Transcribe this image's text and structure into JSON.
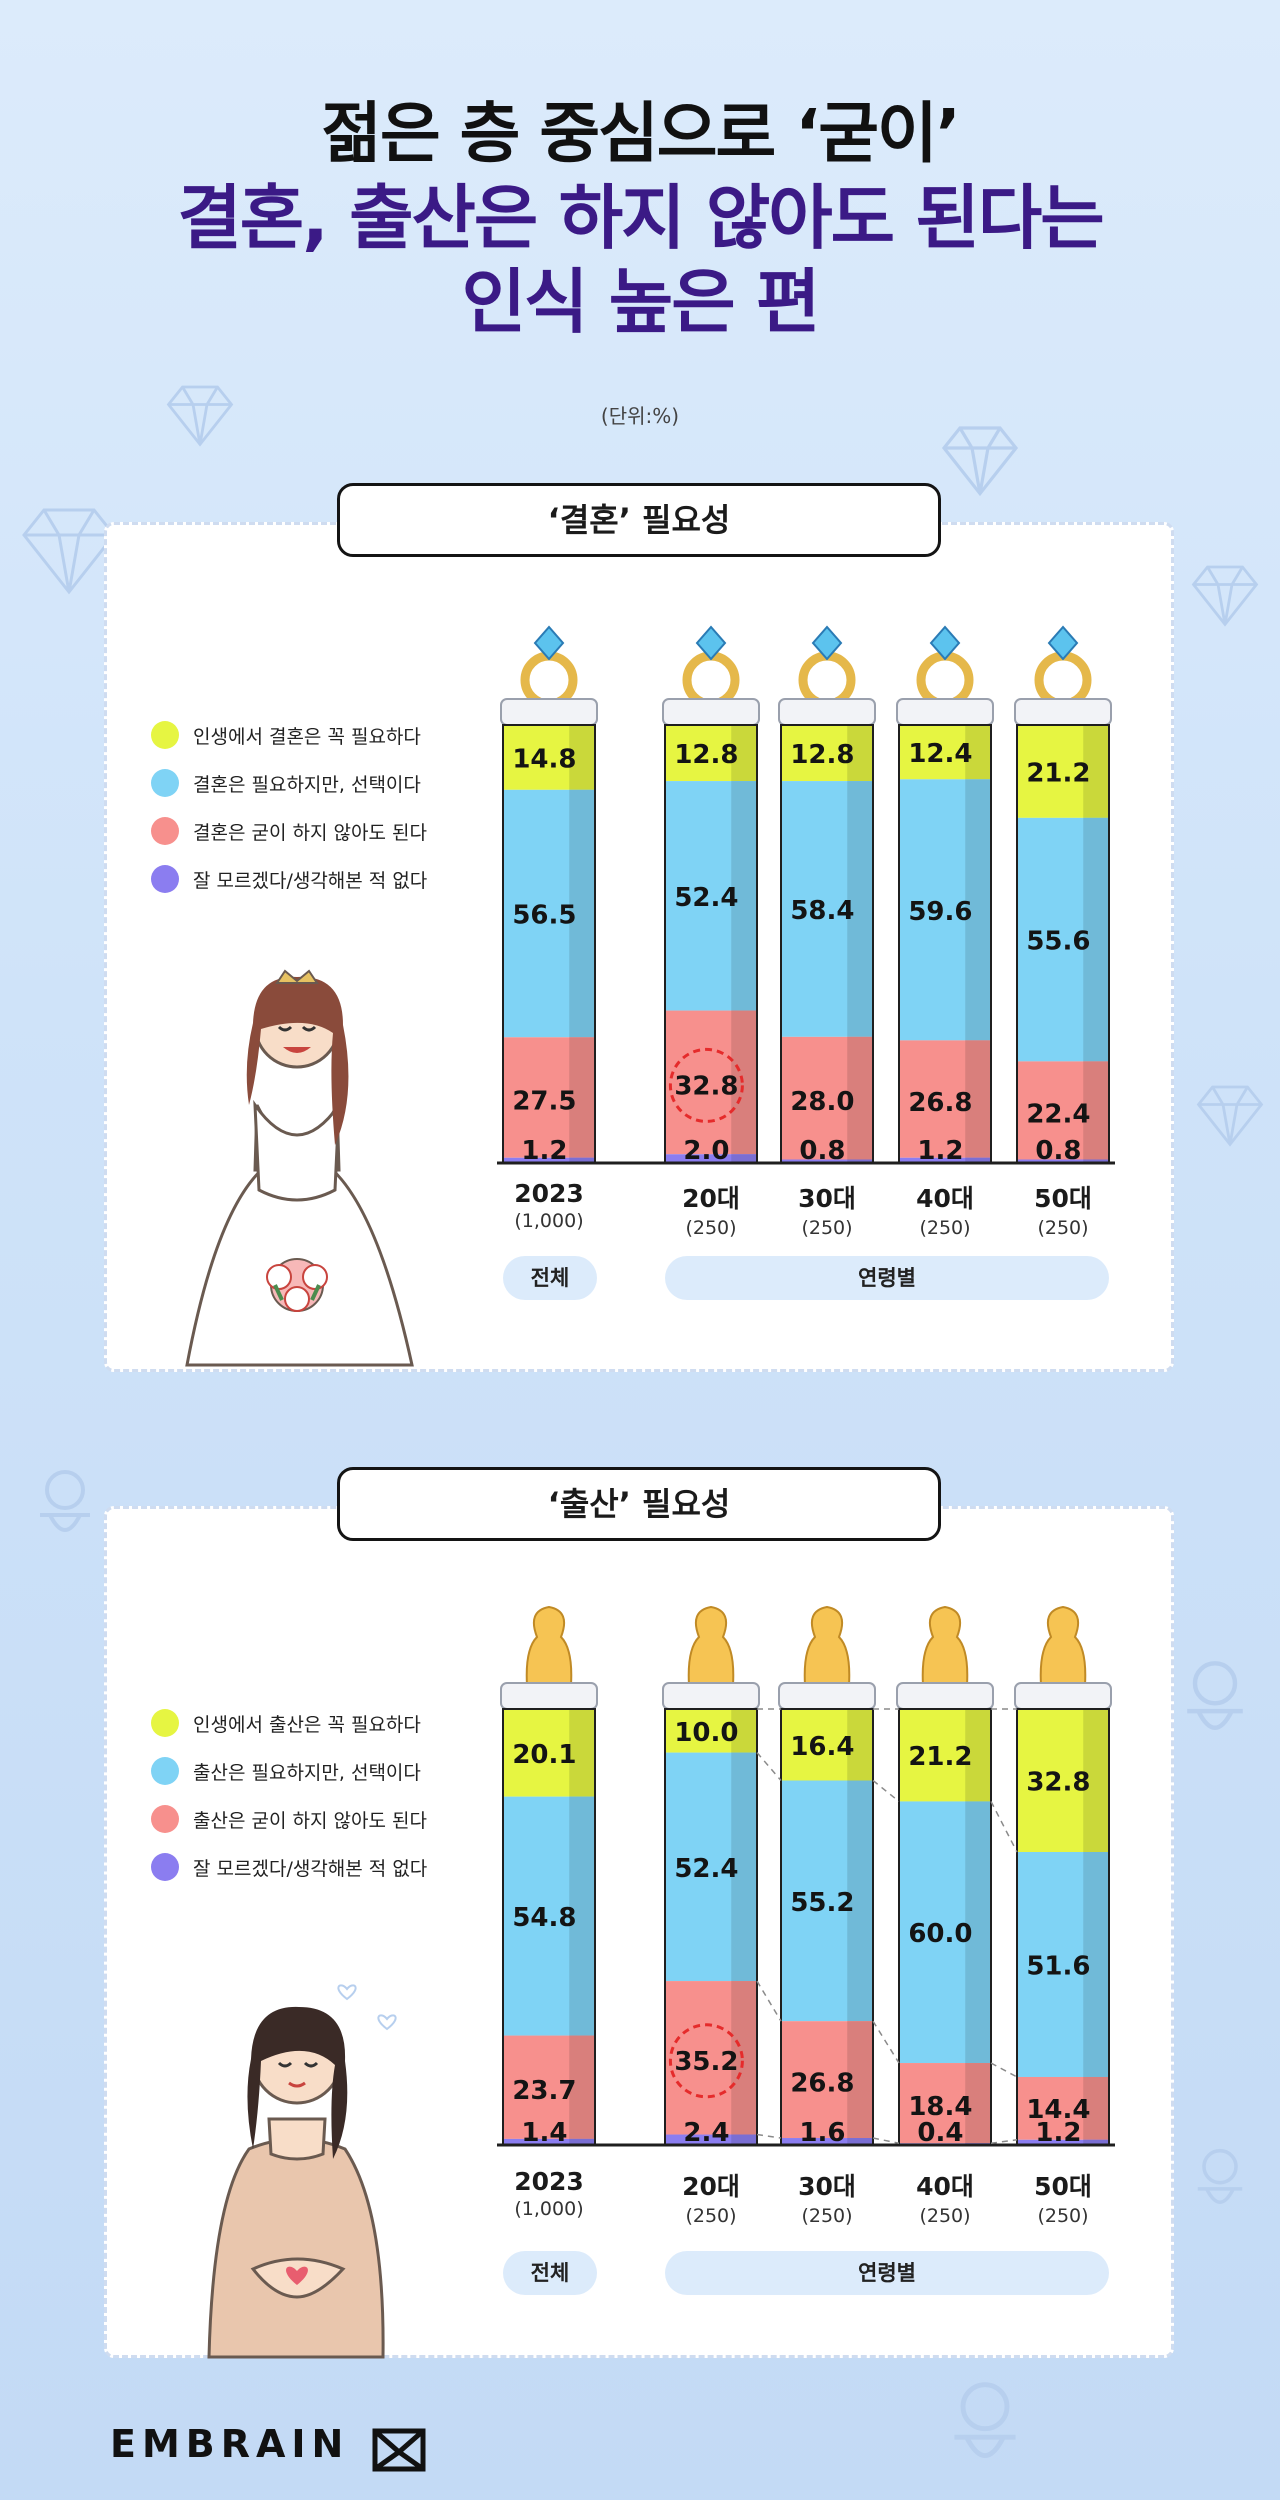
{
  "headline": {
    "line1": "젊은 층 중심으로 ‘굳이’",
    "line2": "결혼, 출산은 하지 않아도 된다는",
    "line3": "인식 높은 편"
  },
  "unit": "(단위:%)",
  "colors": {
    "yellow": "#e6f542",
    "blue": "#7fd3f5",
    "pink": "#f7908d",
    "purple": "#8b7df0",
    "title_purple": "#3b1a86"
  },
  "marriage": {
    "title": "‘결혼’ 필요성",
    "legend": [
      "인생에서 결혼은 꼭 필요하다",
      "결혼은 필요하지만, 선택이다",
      "결혼은 굳이 하지 않아도 된다",
      "잘 모르겠다/생각해본 적 없다"
    ],
    "cap_icon": "ring-icon",
    "group_total": "전체",
    "group_age": "연령별"
  },
  "childbirth": {
    "title": "‘출산’ 필요성",
    "legend": [
      "인생에서 출산은 꼭 필요하다",
      "출산은 필요하지만, 선택이다",
      "출산은 굳이 하지 않아도 된다",
      "잘 모르겠다/생각해본 적 없다"
    ],
    "cap_icon": "baby-bottle-nipple-icon",
    "group_total": "전체",
    "group_age": "연령별"
  },
  "brand": "EMBRAIN",
  "chart_data": [
    {
      "type": "bar",
      "stacked": true,
      "title": "‘결혼’ 필요성",
      "categories": [
        "2023",
        "20대",
        "30대",
        "40대",
        "50대"
      ],
      "category_sublabels": [
        "(1,000)",
        "(250)",
        "(250)",
        "(250)",
        "(250)"
      ],
      "series": [
        {
          "name": "인생에서 결혼은 꼭 필요하다",
          "color": "#e6f542",
          "values": [
            14.8,
            12.8,
            12.8,
            12.4,
            21.2
          ],
          "labels": [
            "14.8",
            "12.8",
            "12.8",
            "12.4",
            "21.2"
          ]
        },
        {
          "name": "결혼은 필요하지만, 선택이다",
          "color": "#7fd3f5",
          "values": [
            56.5,
            52.4,
            58.4,
            59.6,
            55.6
          ],
          "labels": [
            "56.5",
            "52.4",
            "58.4",
            "59.6",
            "55.6"
          ]
        },
        {
          "name": "결혼은 굳이 하지 않아도 된다",
          "color": "#f7908d",
          "values": [
            27.5,
            32.8,
            28.0,
            26.8,
            22.4
          ],
          "labels": [
            "27.5",
            "32.8",
            "28.0",
            "26.8",
            "22.4"
          ]
        },
        {
          "name": "잘 모르겠다/생각해본 적 없다",
          "color": "#8b7df0",
          "values": [
            1.2,
            2.0,
            0.8,
            1.2,
            0.8
          ],
          "labels": [
            "1.2",
            "2.0",
            "0.8",
            "1.2",
            "0.8"
          ]
        }
      ],
      "highlight": {
        "series": 2,
        "category": 1
      }
    },
    {
      "type": "bar",
      "stacked": true,
      "title": "‘출산’ 필요성",
      "categories": [
        "2023",
        "20대",
        "30대",
        "40대",
        "50대"
      ],
      "category_sublabels": [
        "(1,000)",
        "(250)",
        "(250)",
        "(250)",
        "(250)"
      ],
      "series": [
        {
          "name": "인생에서 출산은 꼭 필요하다",
          "color": "#e6f542",
          "values": [
            20.1,
            10.0,
            16.4,
            21.2,
            32.8
          ],
          "labels": [
            "20.1",
            "10.0",
            "16.4",
            "21.2",
            "32.8"
          ]
        },
        {
          "name": "출산은 필요하지만, 선택이다",
          "color": "#7fd3f5",
          "values": [
            54.8,
            52.4,
            55.2,
            60.0,
            51.6
          ],
          "labels": [
            "54.8",
            "52.4",
            "55.2",
            "60.0",
            "51.6"
          ]
        },
        {
          "name": "출산은 굳이 하지 않아도 된다",
          "color": "#f7908d",
          "values": [
            23.7,
            35.2,
            26.8,
            18.4,
            14.4
          ],
          "labels": [
            "23.7",
            "35.2",
            "26.8",
            "18.4",
            "14.4"
          ]
        },
        {
          "name": "잘 모르겠다/생각해본 적 없다",
          "color": "#8b7df0",
          "values": [
            1.4,
            2.4,
            1.6,
            0.4,
            1.2
          ],
          "labels": [
            "1.4",
            "2.4",
            "1.6",
            "0.4",
            "1.2"
          ]
        }
      ],
      "highlight": {
        "series": 2,
        "category": 1
      },
      "connector_lines": true
    }
  ]
}
